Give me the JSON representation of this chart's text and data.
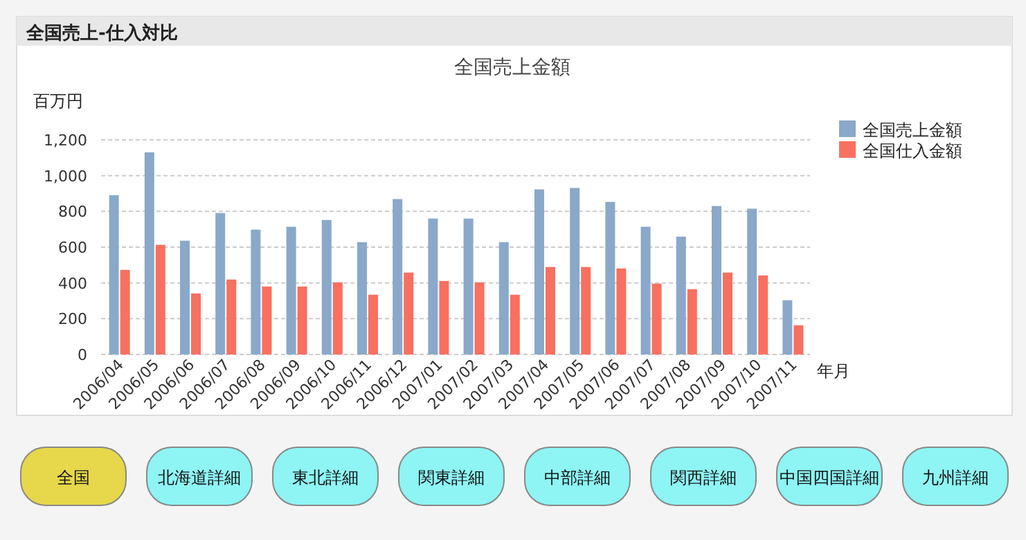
{
  "chart_data": {
    "type": "bar",
    "title": "全国売上-仕入対比",
    "subtitle": "全国売上金額",
    "ylabel": "百万円",
    "xlabel": "年月",
    "categories": [
      "2006/04",
      "2006/05",
      "2006/06",
      "2006/07",
      "2006/08",
      "2006/09",
      "2006/10",
      "2006/11",
      "2006/12",
      "2007/01",
      "2007/02",
      "2007/03",
      "2007/04",
      "2007/05",
      "2007/06",
      "2007/07",
      "2007/08",
      "2007/09",
      "2007/10",
      "2007/11"
    ],
    "series": [
      {
        "name": "全国売上金額",
        "color": "#8aa8c9",
        "values": [
          890,
          1130,
          636,
          791,
          698,
          714,
          752,
          628,
          869,
          760,
          760,
          628,
          923,
          931,
          853,
          714,
          659,
          830,
          815,
          303
        ]
      },
      {
        "name": "全国仕入金額",
        "color": "#f87060",
        "values": [
          473,
          613,
          341,
          419,
          380,
          380,
          403,
          334,
          458,
          411,
          403,
          334,
          489,
          489,
          481,
          396,
          365,
          458,
          442,
          163
        ]
      }
    ],
    "ylim": [
      0,
      1200
    ],
    "yticks": [
      {
        "value": 0,
        "label": "0"
      },
      {
        "value": 200,
        "label": "200"
      },
      {
        "value": 400,
        "label": "400"
      },
      {
        "value": 600,
        "label": "600"
      },
      {
        "value": 800,
        "label": "800"
      },
      {
        "value": 1000,
        "label": "1,000"
      },
      {
        "value": 1200,
        "label": "1,200"
      }
    ],
    "grid": "y",
    "legend": "top right",
    "annotations": [
      "全国",
      "北海道詳細",
      "東北詳細",
      "関東詳細",
      "中部詳細",
      "関西詳細",
      "中国四国詳細",
      "九州詳細"
    ]
  }
}
